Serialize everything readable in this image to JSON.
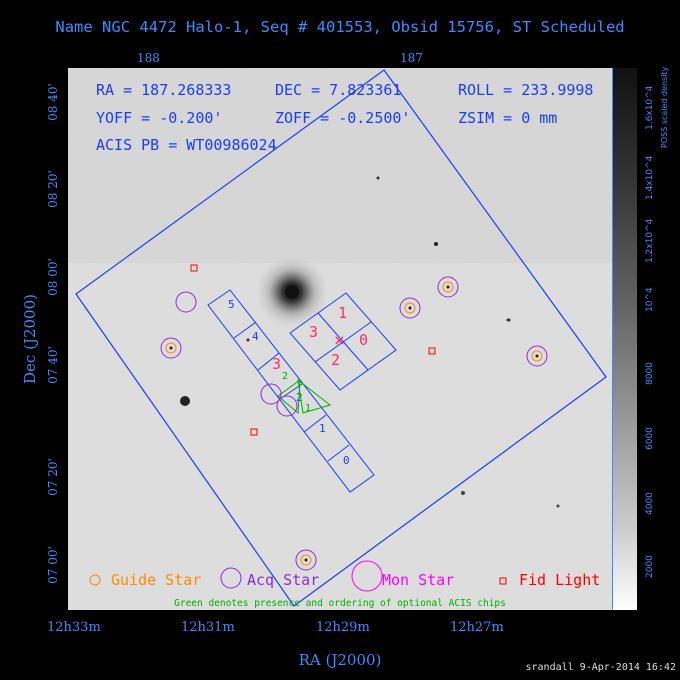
{
  "title": "Name NGC 4472 Halo-1, Seq # 401553, Obsid 15756, ST Scheduled",
  "top_ticks": [
    "188",
    "187"
  ],
  "bottom_ticks": [
    "12h33m",
    "12h31m",
    "12h29m",
    "12h27m"
  ],
  "left_ticks": [
    "08 40'",
    "08 20'",
    "08 00'",
    "07 40'",
    "07 20'",
    "07 00'"
  ],
  "x_axis_title": "RA (J2000)",
  "y_axis_title": "Dec (J2000)",
  "info": {
    "ra": "RA = 187.268333",
    "dec": "DEC = 7.823361",
    "roll": "ROLL = 233.9998",
    "yoff": "YOFF = -0.200'",
    "zoff": "ZOFF = -0.2500'",
    "zsim": "ZSIM = 0 mm",
    "acis_pb": "ACIS PB = WT00986024"
  },
  "chips": {
    "i0": "0",
    "i1": "1",
    "i2": "2",
    "i3": "3",
    "s0": "0",
    "s1": "1",
    "s2": "2",
    "s3": "3",
    "s4": "4",
    "s5": "5",
    "opt1": "1",
    "opt2": "2"
  },
  "legend": {
    "guide": "Guide Star",
    "acq": "Acq Star",
    "mon": "Mon Star",
    "fid": "Fid Light",
    "note": "Green denotes presence and ordering of optional ACIS chips"
  },
  "colorbar": {
    "ticks": [
      "2000",
      "4000",
      "6000",
      "8000",
      "10^4",
      "1.2x10^4",
      "1.4x10^4",
      "1.6x10^4"
    ],
    "title": "POSS scaled density"
  },
  "footer": "srandall  9-Apr-2014 16:42",
  "colors": {
    "accent": "#3b8cff",
    "fov": "#1a3cff",
    "guide": "#ff8c00",
    "acq": "#8a2be2",
    "mon": "#ff00ff",
    "fid": "#ff0000",
    "optional": "#00b000",
    "chip_label": "#ff2d6e"
  }
}
